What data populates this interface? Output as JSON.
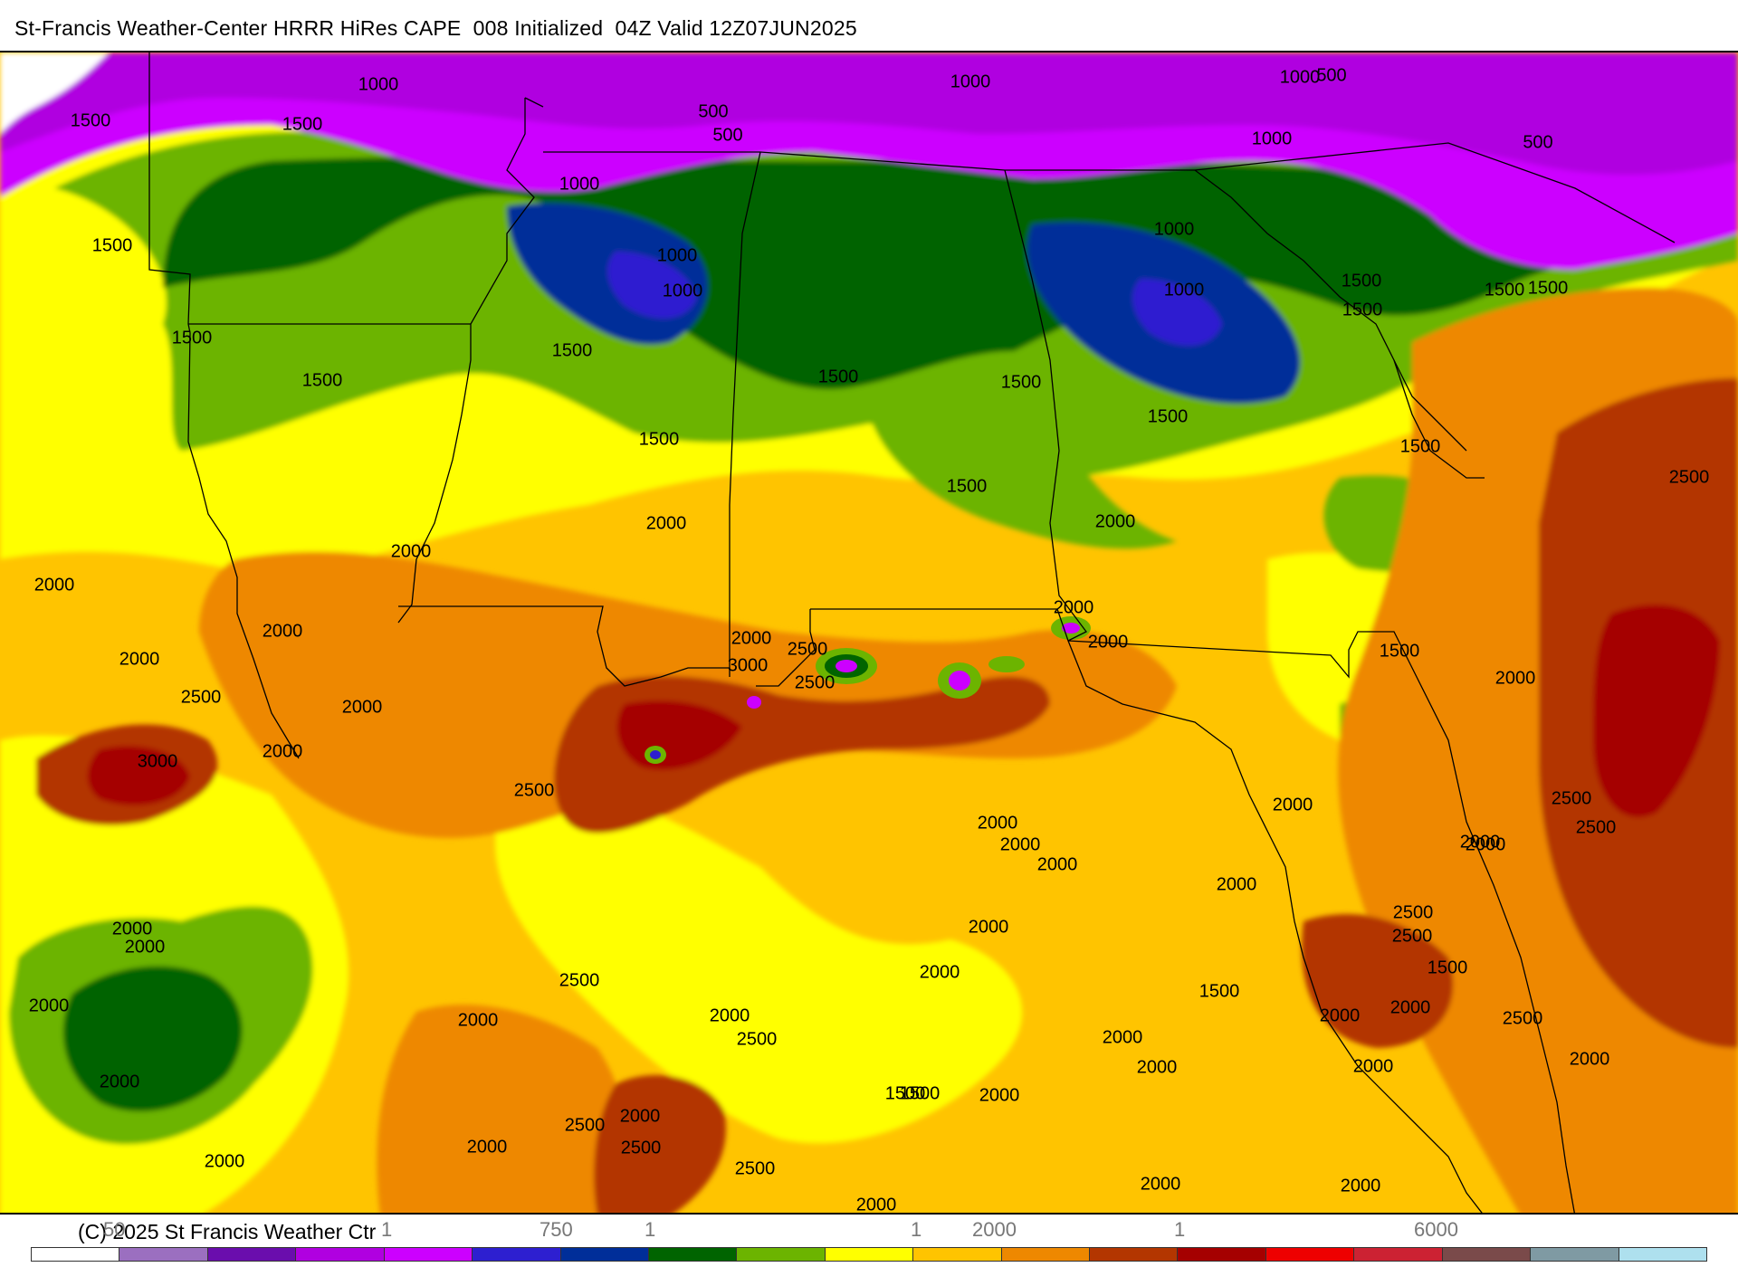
{
  "header": {
    "title": "St-Francis Weather-Center HRRR HiRes CAPE  008 Initialized  04Z Valid 12Z07JUN2025"
  },
  "footer": {
    "copyright": "(C) 2025 St Francis Weather Ctr",
    "scale_labels": [
      "50",
      "1",
      "750",
      "1",
      "1",
      "2000",
      "1",
      "6000"
    ]
  },
  "colors": {
    "c0": "#ffffff",
    "c50": "#9b6fc0",
    "c100": "#6a0dad",
    "c250": "#b000e0",
    "c500": "#cc00ff",
    "c750": "#2d1fd0",
    "c1000": "#002e99",
    "c1250": "#006400",
    "c1500": "#6cb400",
    "c1750": "#ffff00",
    "c2000": "#ffc400",
    "c2250": "#ee8800",
    "c2500": "#b33600",
    "c2750": "#a50000",
    "c3000": "#ee0000",
    "c3500": "#cc2233",
    "c4000": "#7a4a4a",
    "c5000": "#7f9aa3",
    "c6000": "#aee0ee"
  },
  "colorbar": [
    "#ffffff",
    "#9b6fc0",
    "#6a0dad",
    "#b000e0",
    "#cc00ff",
    "#2d1fd0",
    "#002e99",
    "#006400",
    "#6cb400",
    "#ffff00",
    "#ffc400",
    "#ee8800",
    "#b33600",
    "#a50000",
    "#ee0000",
    "#cc2233",
    "#7a4a4a",
    "#7f9aa3",
    "#aee0ee"
  ],
  "contour_labels": [
    "1000",
    "1500",
    "1500",
    "500",
    "500",
    "1000",
    "1000",
    "500",
    "1000",
    "500",
    "1500",
    "1000",
    "1000",
    "1000",
    "1000",
    "1000",
    "1500",
    "1500",
    "1500",
    "1500",
    "1500",
    "1500",
    "1500",
    "1500",
    "1500",
    "1500",
    "1500",
    "1500",
    "2500",
    "1500",
    "2000",
    "2000",
    "2000",
    "2000",
    "2000",
    "2000",
    "2000",
    "2000",
    "2000",
    "2500",
    "2000",
    "3000",
    "2500",
    "2500",
    "3000",
    "2500",
    "2000",
    "2000",
    "2500",
    "2500",
    "2000",
    "2000",
    "2000",
    "1500",
    "2000",
    "2000",
    "2000",
    "2000",
    "2000",
    "2500",
    "1500",
    "2000",
    "1500",
    "2000",
    "2000",
    "2000",
    "2000",
    "2500",
    "2000",
    "2500",
    "2000",
    "2500",
    "1500",
    "2000",
    "2000",
    "2000",
    "2000",
    "2000",
    "2500",
    "2000",
    "2000",
    "2500",
    "2000",
    "2000",
    "2500",
    "2000",
    "2500",
    "2000",
    "2000",
    "1500",
    "2000"
  ]
}
